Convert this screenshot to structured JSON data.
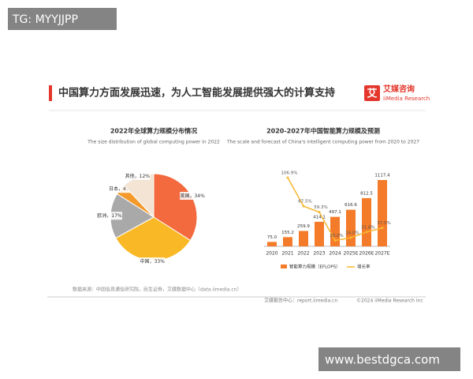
{
  "header": {
    "title": "中国算力方面发展迅速，为人工智能发展提供强大的计算支持",
    "logo_icon": "艾",
    "logo_name": "艾媒咨询",
    "logo_en": "iiMedia Research"
  },
  "watermark_top": "TG: MYYJJPP",
  "watermark_bottom": "www.bestdgca.com",
  "source": "数据来源：中国信息通信研究院，民生证券，艾媒数据中心（data.iimedia.cn）",
  "footer": {
    "left": "艾媒报告中心：report.iimedia.cn",
    "right": "©2024 iiMedia Research Inc"
  },
  "chart_data": [
    {
      "type": "pie",
      "title": "2022年全球算力规模分布情况",
      "subtitle": "The size distribution of global computing power in 2022",
      "categories": [
        "美国，",
        "中国，",
        "欧洲，",
        "日本，",
        "其他，"
      ],
      "values": [
        34,
        33,
        17,
        4,
        12
      ],
      "value_labels": [
        "34%",
        "33%",
        "17%",
        "4%",
        "12%"
      ],
      "colors": [
        "#f26a3d",
        "#f9b825",
        "#a9a9a9",
        "#f39a2b",
        "#f3e4d4"
      ]
    },
    {
      "type": "bar_line",
      "title": "2020-2027年中国智能算力规模及预测",
      "subtitle": "The scale and forecast of China's intelligent computing power from 2020 to 2027",
      "categories": [
        "2020",
        "2021",
        "2022",
        "2023",
        "2024",
        "2025E",
        "2026E",
        "2027E"
      ],
      "series": [
        {
          "name": "智能算力规模（EFLOPS）",
          "color": "#f47b2a",
          "values": [
            75.0,
            155.2,
            259.9,
            414.1,
            497.1,
            616.6,
            812.5,
            1117.4
          ],
          "value_labels": [
            "75.0",
            "155.2",
            "259.9",
            "414.1",
            "497.1",
            "616.6",
            "812.5",
            "1117.4"
          ]
        },
        {
          "name": "增长率",
          "color": "#f7b731",
          "axis": "y2",
          "values": [
            null,
            106.9,
            67.5,
            59.3,
            20.0,
            24.0,
            31.8,
            37.5
          ],
          "value_labels": [
            null,
            "106.9%",
            "67.5%",
            "59.3%",
            "20.0%",
            "24.0%",
            "31.8%",
            "37.5%"
          ]
        }
      ]
    }
  ]
}
